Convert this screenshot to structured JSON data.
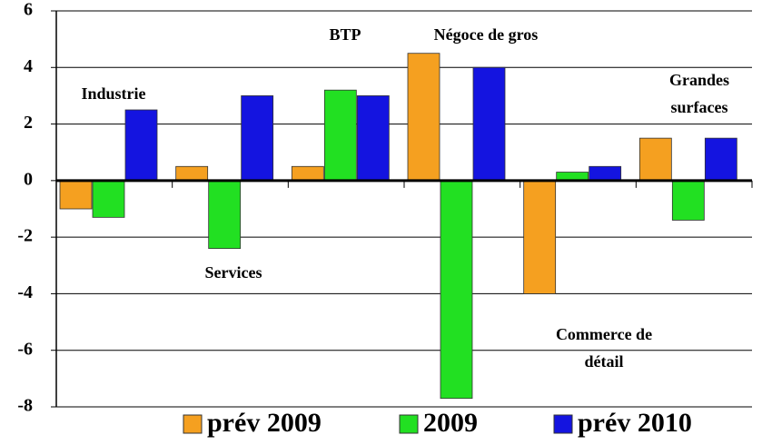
{
  "chart_data": {
    "type": "bar",
    "categories": [
      "Industrie",
      "Services",
      "BTP",
      "Négoce de gros",
      "Commerce de détail",
      "Grandes surfaces"
    ],
    "series": [
      {
        "name": "prév 2009",
        "color": "#f5a020",
        "values": [
          -1.0,
          0.5,
          0.5,
          4.5,
          -4.0,
          1.5
        ]
      },
      {
        "name": "2009",
        "color": "#22e022",
        "values": [
          -1.3,
          -2.4,
          3.2,
          -7.7,
          0.3,
          -1.4
        ]
      },
      {
        "name": "prév 2010",
        "color": "#1414e0",
        "values": [
          2.5,
          3.0,
          3.0,
          4.0,
          0.5,
          1.5
        ]
      }
    ],
    "ylim": [
      -8,
      6
    ],
    "yticks": [
      -8,
      -6,
      -4,
      -2,
      0,
      2,
      4,
      6
    ],
    "grid": true
  }
}
